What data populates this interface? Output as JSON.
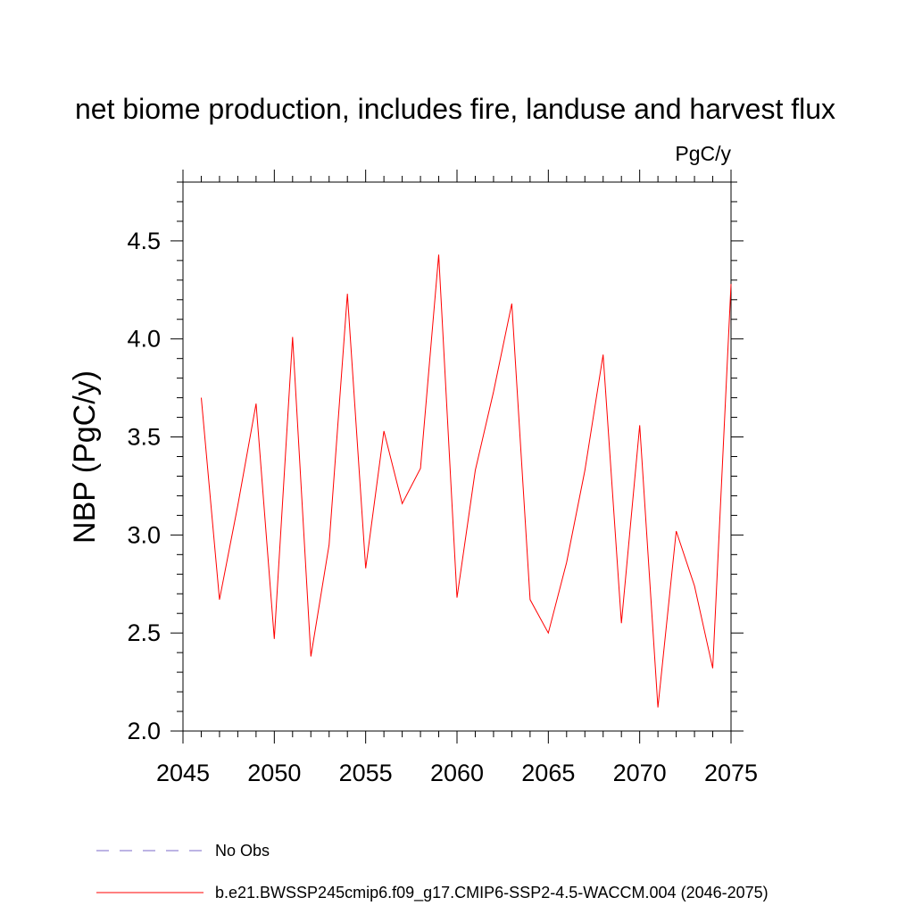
{
  "chart_data": {
    "type": "line",
    "title": "net biome production, includes fire, landuse and harvest flux",
    "units_label": "PgC/y",
    "xlabel": "",
    "ylabel": "NBP  (PgC/y)",
    "xlim": [
      2045,
      2075
    ],
    "ylim": [
      2.0,
      4.8
    ],
    "x_ticks": [
      2045,
      2050,
      2055,
      2060,
      2065,
      2070,
      2075
    ],
    "x_tick_labels": [
      "2045",
      "2050",
      "2055",
      "2060",
      "2065",
      "2070",
      "2075"
    ],
    "y_ticks": [
      2.0,
      2.5,
      3.0,
      3.5,
      4.0,
      4.5
    ],
    "y_tick_labels": [
      "2.0",
      "2.5",
      "3.0",
      "3.5",
      "4.0",
      "4.5"
    ],
    "grid": false,
    "legend_position": "bottom",
    "series": [
      {
        "name": "b.e21.BWSSP245cmip6.f09_g17.CMIP6-SSP2-4.5-WACCM.004 (2046-2075)",
        "color": "#ff0000",
        "line_style": "solid",
        "x": [
          2046,
          2047,
          2048,
          2049,
          2050,
          2051,
          2052,
          2053,
          2054,
          2055,
          2056,
          2057,
          2058,
          2059,
          2060,
          2061,
          2062,
          2063,
          2064,
          2065,
          2066,
          2067,
          2068,
          2069,
          2070,
          2071,
          2072,
          2073,
          2074,
          2075
        ],
        "values": [
          3.7,
          2.67,
          3.15,
          3.67,
          2.47,
          4.01,
          2.38,
          2.95,
          4.23,
          2.83,
          3.53,
          3.16,
          3.34,
          4.43,
          2.68,
          3.33,
          3.73,
          4.18,
          2.67,
          2.5,
          2.86,
          3.33,
          3.92,
          2.55,
          3.56,
          2.12,
          3.02,
          2.74,
          2.32,
          4.28
        ]
      }
    ],
    "legend": [
      {
        "label": "No Obs",
        "color": "#7b68c8",
        "line_style": "dashed"
      },
      {
        "label": "b.e21.BWSSP245cmip6.f09_g17.CMIP6-SSP2-4.5-WACCM.004 (2046-2075)",
        "color": "#ff0000",
        "line_style": "solid"
      }
    ]
  }
}
